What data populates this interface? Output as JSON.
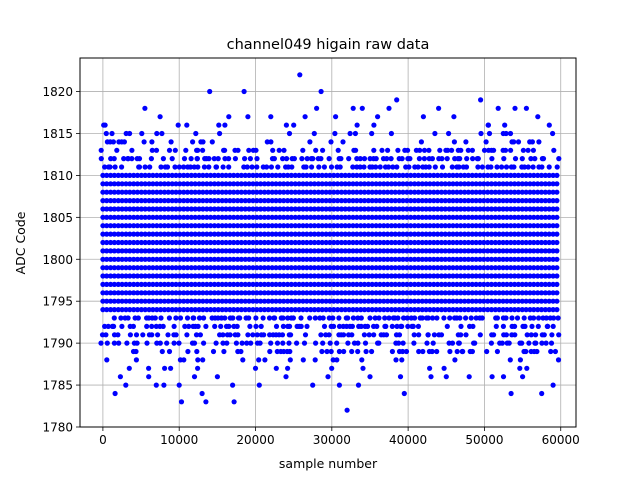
{
  "chart_data": {
    "type": "scatter",
    "title": "channel049 higain raw data",
    "xlabel": "sample number",
    "ylabel": "ADC Code",
    "xlim": [
      -3000,
      62000
    ],
    "ylim": [
      1780,
      1824
    ],
    "xticks": [
      0,
      10000,
      20000,
      30000,
      40000,
      50000,
      60000
    ],
    "yticks": [
      1780,
      1785,
      1790,
      1795,
      1800,
      1805,
      1810,
      1815,
      1820
    ],
    "grid": true,
    "x_range": [
      0,
      59500
    ],
    "dense_band": [
      1794,
      1810
    ],
    "marker_color": "#0000ff",
    "outliers": [
      {
        "x": 1200,
        "y": 1815
      },
      {
        "x": 1600,
        "y": 1784
      },
      {
        "x": 2300,
        "y": 1786
      },
      {
        "x": 3000,
        "y": 1785
      },
      {
        "x": 3500,
        "y": 1815
      },
      {
        "x": 5500,
        "y": 1818
      },
      {
        "x": 6000,
        "y": 1786
      },
      {
        "x": 7000,
        "y": 1785
      },
      {
        "x": 7500,
        "y": 1817
      },
      {
        "x": 8000,
        "y": 1785
      },
      {
        "x": 10000,
        "y": 1785
      },
      {
        "x": 10300,
        "y": 1783
      },
      {
        "x": 11000,
        "y": 1816
      },
      {
        "x": 12000,
        "y": 1786
      },
      {
        "x": 13000,
        "y": 1784
      },
      {
        "x": 13500,
        "y": 1783
      },
      {
        "x": 14000,
        "y": 1820
      },
      {
        "x": 15000,
        "y": 1786
      },
      {
        "x": 16500,
        "y": 1817
      },
      {
        "x": 17000,
        "y": 1785
      },
      {
        "x": 17200,
        "y": 1783
      },
      {
        "x": 18500,
        "y": 1820
      },
      {
        "x": 19000,
        "y": 1817
      },
      {
        "x": 20000,
        "y": 1787
      },
      {
        "x": 20500,
        "y": 1785
      },
      {
        "x": 22000,
        "y": 1817
      },
      {
        "x": 24000,
        "y": 1786
      },
      {
        "x": 25000,
        "y": 1816
      },
      {
        "x": 25800,
        "y": 1822
      },
      {
        "x": 26500,
        "y": 1817
      },
      {
        "x": 27500,
        "y": 1785
      },
      {
        "x": 28000,
        "y": 1818
      },
      {
        "x": 28600,
        "y": 1820
      },
      {
        "x": 29500,
        "y": 1786
      },
      {
        "x": 30500,
        "y": 1817
      },
      {
        "x": 31000,
        "y": 1785
      },
      {
        "x": 32000,
        "y": 1782
      },
      {
        "x": 32800,
        "y": 1818
      },
      {
        "x": 33500,
        "y": 1785
      },
      {
        "x": 34000,
        "y": 1818
      },
      {
        "x": 35000,
        "y": 1786
      },
      {
        "x": 36000,
        "y": 1817
      },
      {
        "x": 37500,
        "y": 1818
      },
      {
        "x": 38500,
        "y": 1819
      },
      {
        "x": 39000,
        "y": 1786
      },
      {
        "x": 39500,
        "y": 1784
      },
      {
        "x": 42000,
        "y": 1817
      },
      {
        "x": 43000,
        "y": 1786
      },
      {
        "x": 44000,
        "y": 1818
      },
      {
        "x": 45000,
        "y": 1786
      },
      {
        "x": 46000,
        "y": 1817
      },
      {
        "x": 48000,
        "y": 1786
      },
      {
        "x": 49500,
        "y": 1819
      },
      {
        "x": 50500,
        "y": 1816
      },
      {
        "x": 51000,
        "y": 1786
      },
      {
        "x": 51800,
        "y": 1818
      },
      {
        "x": 52500,
        "y": 1786
      },
      {
        "x": 53500,
        "y": 1784
      },
      {
        "x": 54000,
        "y": 1818
      },
      {
        "x": 55000,
        "y": 1786
      },
      {
        "x": 55500,
        "y": 1818
      },
      {
        "x": 57000,
        "y": 1817
      },
      {
        "x": 57500,
        "y": 1784
      },
      {
        "x": 58500,
        "y": 1816
      },
      {
        "x": 59000,
        "y": 1785
      }
    ]
  }
}
